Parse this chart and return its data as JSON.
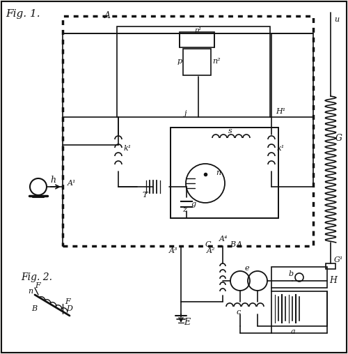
{
  "bg_color": "#f0eeea",
  "border_color": "#1a1a1a",
  "fig1_label": "Fig. 1.",
  "fig2_label": "Fig. 2.",
  "labels": {
    "A": "A",
    "A1": "A¹",
    "A2": "A²",
    "A3": "A³",
    "A4": "A⁴",
    "j": "j",
    "k1": "k¹",
    "k2": "k¹",
    "H1": "H¹",
    "p1": "p¹",
    "p": "p",
    "n2": "n²",
    "T": "T",
    "g": "g",
    "s": "s",
    "n": "n",
    "z": "z",
    "h": "h",
    "B": "B",
    "C": "C",
    "G": "G",
    "G1": "G¹",
    "u": "u",
    "E": "E",
    "H": "H",
    "e": "e",
    "b": "b",
    "a": "a",
    "c": "c",
    "F": "F",
    "D": "D",
    "n_fig2": "n",
    "B_fig2": "B"
  },
  "line_color": "#111111",
  "text_color": "#111111"
}
